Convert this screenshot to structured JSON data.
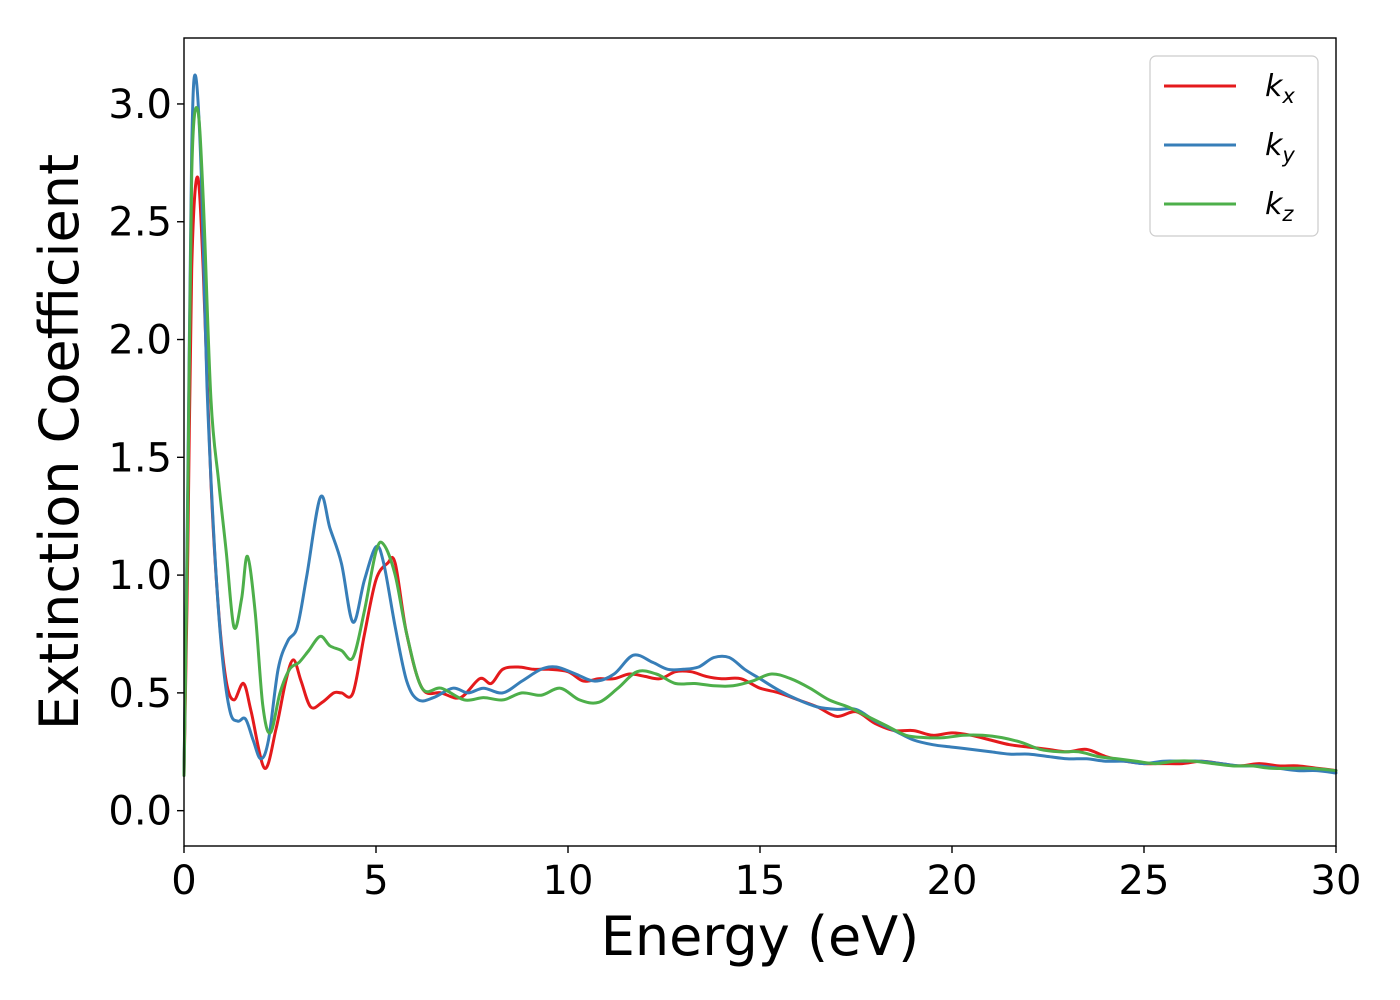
{
  "chart_data": {
    "type": "line",
    "xlabel": "Energy (eV)",
    "ylabel": "Extinction Coefficient",
    "xlim": [
      0,
      30
    ],
    "ylim": [
      -0.15,
      3.28
    ],
    "xticks": [
      0,
      5,
      10,
      15,
      20,
      25,
      30
    ],
    "xtick_labels": [
      "0",
      "5",
      "10",
      "15",
      "20",
      "25",
      "30"
    ],
    "yticks": [
      0.0,
      0.5,
      1.0,
      1.5,
      2.0,
      2.5,
      3.0
    ],
    "ytick_labels": [
      "0.0",
      "0.5",
      "1.0",
      "1.5",
      "2.0",
      "2.5",
      "3.0"
    ],
    "grid": false,
    "legend_position": "top-right",
    "series": [
      {
        "name": "kx",
        "base": "k",
        "sub": "x",
        "color": "#e41a1c",
        "x": [
          0,
          0.1,
          0.2,
          0.35,
          0.5,
          0.7,
          0.9,
          1.1,
          1.3,
          1.55,
          1.75,
          2.1,
          2.4,
          2.65,
          2.85,
          3.05,
          3.3,
          3.6,
          3.9,
          4.1,
          4.4,
          4.7,
          5.0,
          5.3,
          5.5,
          5.8,
          6.2,
          6.7,
          7.2,
          7.7,
          8.0,
          8.3,
          8.7,
          9.1,
          9.5,
          10.0,
          10.4,
          10.8,
          11.2,
          11.6,
          12.0,
          12.4,
          12.8,
          13.2,
          13.6,
          14.0,
          14.5,
          15.0,
          15.5,
          16.0,
          16.5,
          17.0,
          17.5,
          18.0,
          18.5,
          19.0,
          19.5,
          20.0,
          20.5,
          21.0,
          21.5,
          22.0,
          22.5,
          23.0,
          23.5,
          24.0,
          24.5,
          25.0,
          25.5,
          26.0,
          26.5,
          27.0,
          27.5,
          28.0,
          28.5,
          29.0,
          29.5,
          30.0
        ],
        "values": [
          0.15,
          1.1,
          2.3,
          2.69,
          2.3,
          1.4,
          0.85,
          0.55,
          0.47,
          0.54,
          0.42,
          0.18,
          0.35,
          0.55,
          0.64,
          0.55,
          0.44,
          0.46,
          0.5,
          0.5,
          0.5,
          0.75,
          0.98,
          1.05,
          1.05,
          0.75,
          0.52,
          0.5,
          0.48,
          0.56,
          0.54,
          0.6,
          0.61,
          0.6,
          0.6,
          0.59,
          0.55,
          0.56,
          0.56,
          0.58,
          0.57,
          0.56,
          0.59,
          0.59,
          0.57,
          0.56,
          0.56,
          0.52,
          0.5,
          0.47,
          0.44,
          0.4,
          0.42,
          0.37,
          0.34,
          0.34,
          0.32,
          0.33,
          0.32,
          0.3,
          0.28,
          0.27,
          0.26,
          0.25,
          0.26,
          0.23,
          0.21,
          0.2,
          0.2,
          0.2,
          0.21,
          0.2,
          0.19,
          0.2,
          0.19,
          0.19,
          0.18,
          0.17
        ]
      },
      {
        "name": "ky",
        "base": "k",
        "sub": "y",
        "color": "#377eb8",
        "x": [
          0,
          0.1,
          0.2,
          0.3,
          0.45,
          0.6,
          0.8,
          1.0,
          1.2,
          1.4,
          1.6,
          1.8,
          2.0,
          2.2,
          2.45,
          2.7,
          2.95,
          3.2,
          3.55,
          3.8,
          4.1,
          4.4,
          4.7,
          5.0,
          5.2,
          5.5,
          5.8,
          6.1,
          6.5,
          7.0,
          7.4,
          7.8,
          8.3,
          8.8,
          9.3,
          9.7,
          10.2,
          10.7,
          11.2,
          11.7,
          12.2,
          12.6,
          13.0,
          13.4,
          13.8,
          14.2,
          14.6,
          15.0,
          15.5,
          16.0,
          16.5,
          17.0,
          17.5,
          18.0,
          18.5,
          19.0,
          19.5,
          20.0,
          20.5,
          21.0,
          21.5,
          22.0,
          22.5,
          23.0,
          23.5,
          24.0,
          24.5,
          25.0,
          25.5,
          26.0,
          26.5,
          27.0,
          27.5,
          28.0,
          28.5,
          29.0,
          29.5,
          30.0
        ],
        "values": [
          0.15,
          1.4,
          2.8,
          3.12,
          2.7,
          1.8,
          1.1,
          0.65,
          0.42,
          0.38,
          0.39,
          0.3,
          0.22,
          0.3,
          0.6,
          0.72,
          0.78,
          1.0,
          1.33,
          1.2,
          1.05,
          0.8,
          0.98,
          1.12,
          1.05,
          0.78,
          0.55,
          0.47,
          0.48,
          0.52,
          0.5,
          0.52,
          0.5,
          0.55,
          0.6,
          0.61,
          0.58,
          0.55,
          0.58,
          0.66,
          0.63,
          0.6,
          0.6,
          0.61,
          0.65,
          0.65,
          0.6,
          0.56,
          0.51,
          0.47,
          0.44,
          0.43,
          0.43,
          0.38,
          0.34,
          0.3,
          0.28,
          0.27,
          0.26,
          0.25,
          0.24,
          0.24,
          0.23,
          0.22,
          0.22,
          0.21,
          0.21,
          0.2,
          0.21,
          0.21,
          0.21,
          0.2,
          0.19,
          0.19,
          0.18,
          0.17,
          0.17,
          0.16
        ]
      },
      {
        "name": "kz",
        "base": "k",
        "sub": "z",
        "color": "#4daf4a",
        "x": [
          0,
          0.1,
          0.2,
          0.35,
          0.5,
          0.7,
          0.9,
          1.1,
          1.3,
          1.5,
          1.65,
          1.85,
          2.05,
          2.25,
          2.5,
          2.75,
          3.0,
          3.25,
          3.55,
          3.8,
          4.1,
          4.4,
          4.7,
          5.0,
          5.2,
          5.5,
          5.8,
          6.2,
          6.7,
          7.3,
          7.8,
          8.3,
          8.8,
          9.3,
          9.8,
          10.3,
          10.8,
          11.3,
          11.8,
          12.3,
          12.8,
          13.3,
          13.8,
          14.3,
          14.8,
          15.3,
          15.8,
          16.3,
          16.8,
          17.3,
          17.8,
          18.3,
          18.8,
          19.3,
          19.8,
          20.3,
          20.8,
          21.3,
          21.8,
          22.3,
          22.8,
          23.3,
          23.8,
          24.3,
          24.8,
          25.3,
          25.8,
          26.3,
          26.8,
          27.3,
          27.8,
          28.3,
          28.8,
          29.3,
          30.0
        ],
        "values": [
          0.15,
          1.3,
          2.7,
          2.98,
          2.6,
          1.75,
          1.4,
          1.1,
          0.78,
          0.9,
          1.08,
          0.85,
          0.45,
          0.33,
          0.5,
          0.6,
          0.63,
          0.68,
          0.74,
          0.7,
          0.68,
          0.65,
          0.85,
          1.1,
          1.13,
          1.0,
          0.75,
          0.52,
          0.52,
          0.47,
          0.48,
          0.47,
          0.5,
          0.49,
          0.52,
          0.47,
          0.46,
          0.52,
          0.59,
          0.58,
          0.54,
          0.54,
          0.53,
          0.53,
          0.55,
          0.58,
          0.56,
          0.52,
          0.47,
          0.44,
          0.4,
          0.36,
          0.32,
          0.31,
          0.31,
          0.32,
          0.32,
          0.31,
          0.29,
          0.26,
          0.25,
          0.25,
          0.23,
          0.22,
          0.21,
          0.2,
          0.21,
          0.21,
          0.2,
          0.19,
          0.19,
          0.18,
          0.18,
          0.18,
          0.17
        ]
      }
    ]
  }
}
